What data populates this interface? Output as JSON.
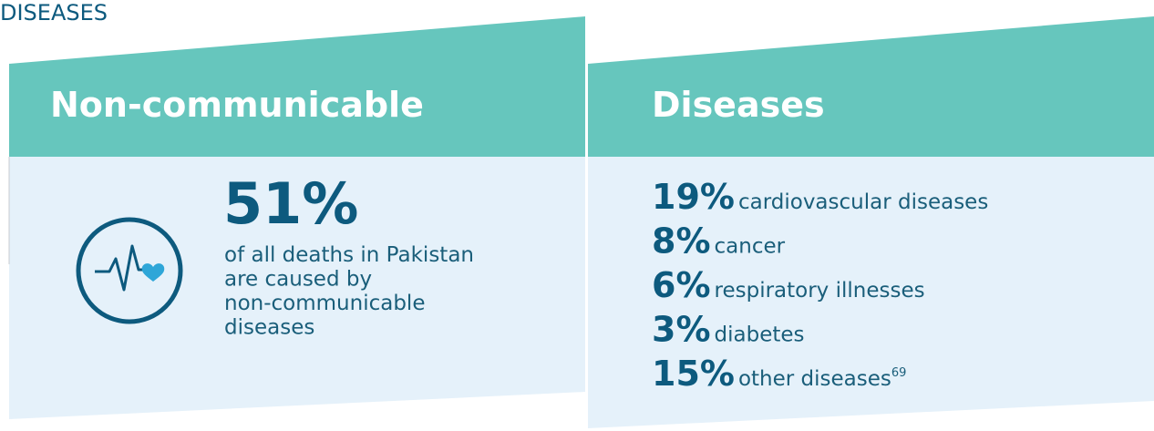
{
  "section_label": "DISEASES",
  "left": {
    "heading": "Non-communicable",
    "stat": "51%",
    "description": [
      "of all deaths in Pakistan",
      "are caused by",
      "non-communicable",
      "diseases"
    ]
  },
  "right": {
    "heading": "Diseases",
    "items": [
      {
        "percent": "19%",
        "label": "cardiovascular diseases"
      },
      {
        "percent": "8%",
        "label": "cancer"
      },
      {
        "percent": "6%",
        "label": "respiratory illnesses"
      },
      {
        "percent": "3%",
        "label": "diabetes"
      },
      {
        "percent": "15%",
        "label": "other diseases",
        "footnote": "69"
      }
    ]
  }
}
